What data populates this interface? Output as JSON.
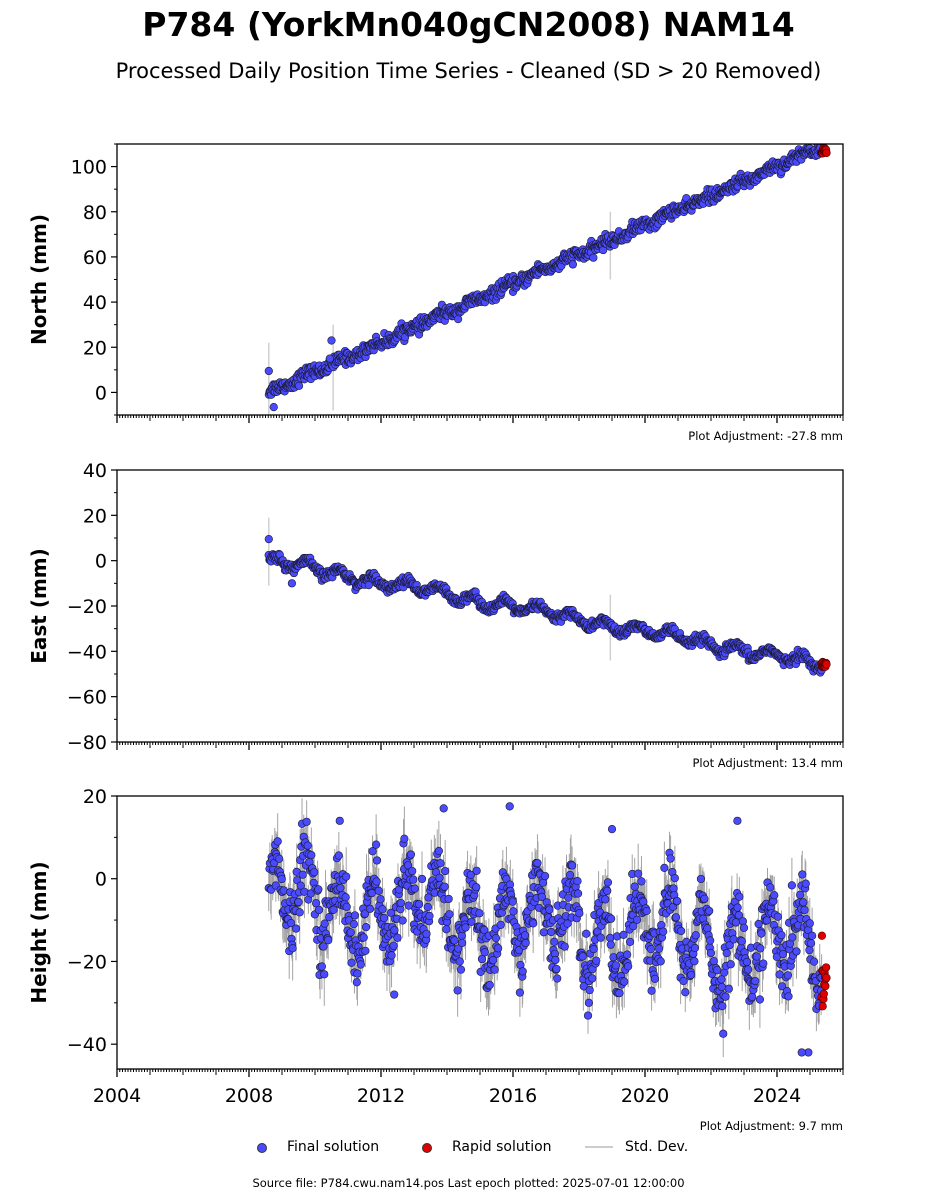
{
  "header": {
    "title": "P784 (YorkMn040gCN2008) NAM14",
    "subtitle": "Processed Daily Position Time Series - Cleaned (SD > 20 Removed)"
  },
  "legend": {
    "final_label": "Final solution",
    "rapid_label": "Rapid solution",
    "std_label": "Std. Dev.",
    "final_color": "#4a4aff",
    "rapid_color": "#e00000",
    "std_color": "#cccccc"
  },
  "footer": "Source file: P784.cwu.nam14.pos  Last epoch plotted: 2025-07-01 12:00:00",
  "chart_data": [
    {
      "type": "scatter",
      "component": "north",
      "ylabel": "North (mm)",
      "ylim": [
        -10,
        110
      ],
      "yticks": [
        0,
        20,
        40,
        60,
        80,
        100
      ],
      "xlim": [
        2004,
        2026
      ],
      "xticks": [
        2004,
        2008,
        2012,
        2016,
        2020,
        2024
      ],
      "adjustment": "Plot Adjustment: -27.8 mm",
      "model": {
        "x0": 2008.6,
        "y0": 0.0,
        "rate_mm_per_yr": 6.5,
        "seasonal_amp": 0.8,
        "noise": 1.4
      },
      "final_x_range": [
        2008.6,
        2025.35
      ],
      "rapid_x_range": [
        2025.35,
        2025.5
      ],
      "rapid_value": 107,
      "outliers": [
        {
          "x": 2008.6,
          "y": 9.5
        },
        {
          "x": 2008.75,
          "y": -6.5
        },
        {
          "x": 2010.5,
          "y": 23
        },
        {
          "x": 2010.45,
          "y": 15
        }
      ],
      "std_bars": [
        {
          "x": 2008.6,
          "ylo": -10,
          "yhi": 22
        },
        {
          "x": 2010.55,
          "ylo": -8,
          "yhi": 30
        },
        {
          "x": 2018.95,
          "ylo": 50,
          "yhi": 80
        }
      ]
    },
    {
      "type": "scatter",
      "component": "east",
      "ylabel": "East (mm)",
      "ylim": [
        -80,
        40
      ],
      "yticks": [
        -80,
        -60,
        -40,
        -20,
        0,
        20,
        40
      ],
      "xlim": [
        2004,
        2026
      ],
      "xticks": [
        2004,
        2008,
        2012,
        2016,
        2020,
        2024
      ],
      "adjustment": "Plot Adjustment: 13.4 mm",
      "model": {
        "x0": 2008.6,
        "y0": 0.0,
        "rate_mm_per_yr": -2.75,
        "seasonal_amp": 2.2,
        "noise": 1.0
      },
      "final_x_range": [
        2008.6,
        2025.35
      ],
      "rapid_x_range": [
        2025.35,
        2025.5
      ],
      "rapid_value": -46,
      "outliers": [
        {
          "x": 2008.6,
          "y": 9.5
        },
        {
          "x": 2009.3,
          "y": -10
        }
      ],
      "std_bars": [
        {
          "x": 2008.6,
          "ylo": -11,
          "yhi": 19
        },
        {
          "x": 2018.95,
          "ylo": -44,
          "yhi": -15
        }
      ]
    },
    {
      "type": "scatter",
      "component": "height",
      "ylabel": "Height (mm)",
      "ylim": [
        -46,
        20
      ],
      "yticks": [
        -40,
        -20,
        0,
        20
      ],
      "xlim": [
        2004,
        2026
      ],
      "xticks": [
        2004,
        2008,
        2012,
        2016,
        2020,
        2024
      ],
      "xtick_labels": [
        "2004",
        "2008",
        "2012",
        "2016",
        "2020",
        "2024"
      ],
      "adjustment": "Plot Adjustment: 9.7 mm",
      "model": {
        "x0": 2008.6,
        "y0": -5.0,
        "rate_mm_per_yr": -0.75,
        "seasonal_amp": 9.0,
        "noise": 4.0
      },
      "final_x_range": [
        2008.6,
        2025.35
      ],
      "rapid_x_range": [
        2025.35,
        2025.5
      ],
      "rapid_value": -27,
      "outliers": [
        {
          "x": 2010.75,
          "y": 14
        },
        {
          "x": 2013.9,
          "y": 17
        },
        {
          "x": 2015.9,
          "y": 17.5
        },
        {
          "x": 2019.0,
          "y": 12
        },
        {
          "x": 2022.8,
          "y": 14
        },
        {
          "x": 2024.95,
          "y": -42
        },
        {
          "x": 2024.75,
          "y": -42
        },
        {
          "x": 2012.4,
          "y": -28
        },
        {
          "x": 2018.3,
          "y": -30
        }
      ],
      "std_bars": []
    }
  ]
}
